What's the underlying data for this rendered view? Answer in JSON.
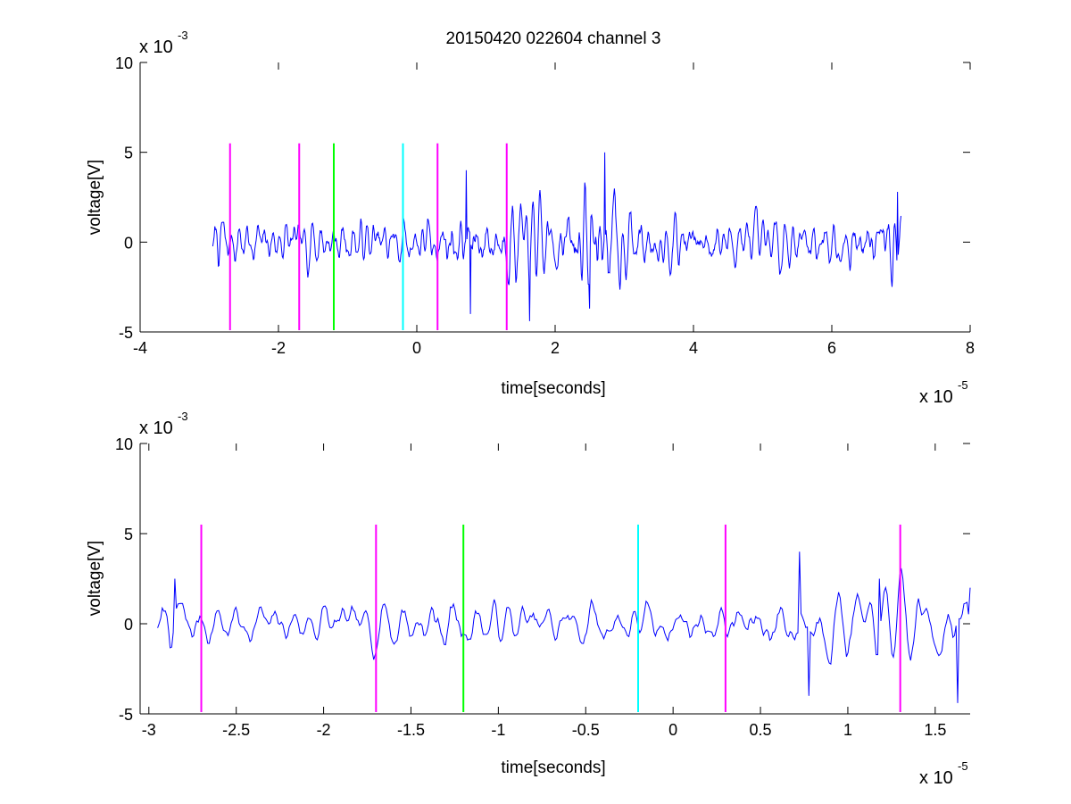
{
  "chart_data": [
    {
      "type": "line",
      "title": "20150420 022604 channel 3",
      "xlabel": "time[seconds]",
      "ylabel": "voltage[V]",
      "xlim": [
        -4e-05,
        8e-05
      ],
      "ylim": [
        -0.005,
        0.01
      ],
      "xticks": [
        -4e-05,
        -2e-05,
        0,
        2e-05,
        4e-05,
        6e-05,
        8e-05
      ],
      "xtick_labels": [
        "-4",
        "-2",
        "0",
        "2",
        "4",
        "6",
        "8"
      ],
      "yticks": [
        -0.005,
        0,
        0.005,
        0.01
      ],
      "ytick_labels": [
        "-5",
        "0",
        "5",
        "10"
      ],
      "x_exponent": {
        "base": "x 10",
        "power": "-5"
      },
      "y_exponent": {
        "base": "x 10",
        "power": "-3"
      },
      "grid": false,
      "signal": {
        "color": "#0000ff",
        "x_start": -2.95e-05,
        "x_end": 7e-05,
        "n_points": 1000,
        "seed": 7,
        "noise_amplitude": 0.0011,
        "bursts": [
          {
            "t": 7e-06,
            "width": 3.5e-06,
            "gain": 1.5
          },
          {
            "t": 1.5e-05,
            "width": 3e-06,
            "gain": 1.6
          },
          {
            "t": 2.6e-05,
            "width": 5e-06,
            "gain": 2.3
          },
          {
            "t": 6.9e-05,
            "width": 3e-06,
            "gain": 1.6
          },
          {
            "t": -2.85e-05,
            "width": 1.5e-06,
            "gain": 1.4
          }
        ],
        "peaks": [
          {
            "t": 2.72e-05,
            "v": 0.005
          },
          {
            "t": 7.2e-06,
            "v": 0.004
          },
          {
            "t": 7.8e-06,
            "v": -0.004
          },
          {
            "t": 1.63e-05,
            "v": -0.0044
          },
          {
            "t": 2.5e-05,
            "v": -0.0037
          },
          {
            "t": 6.95e-05,
            "v": 0.0028
          }
        ]
      },
      "markers": [
        {
          "x": -2.7e-05,
          "color": "#ff00ff",
          "y0": -0.0049,
          "y1": 0.0055
        },
        {
          "x": -1.7e-05,
          "color": "#ff00ff",
          "y0": -0.0049,
          "y1": 0.0055
        },
        {
          "x": -1.2e-05,
          "color": "#00ff00",
          "y0": -0.0049,
          "y1": 0.0055
        },
        {
          "x": -2e-06,
          "color": "#00ffff",
          "y0": -0.0049,
          "y1": 0.0055
        },
        {
          "x": 3e-06,
          "color": "#ff00ff",
          "y0": -0.0049,
          "y1": 0.0055
        },
        {
          "x": 1.3e-05,
          "color": "#ff00ff",
          "y0": -0.0049,
          "y1": 0.0055
        }
      ]
    },
    {
      "type": "line",
      "title": "",
      "xlabel": "time[seconds]",
      "ylabel": "voltage[V]",
      "xlim": [
        -3.05e-05,
        1.7e-05
      ],
      "ylim": [
        -0.005,
        0.01
      ],
      "xticks": [
        -3e-05,
        -2.5e-05,
        -2e-05,
        -1.5e-05,
        -1e-05,
        -5e-06,
        0,
        5e-06,
        1e-05,
        1.5e-05
      ],
      "xtick_labels": [
        "-3",
        "-2.5",
        "-2",
        "-1.5",
        "-1",
        "-0.5",
        "0",
        "0.5",
        "1",
        "1.5"
      ],
      "yticks": [
        -0.005,
        0,
        0.005,
        0.01
      ],
      "ytick_labels": [
        "-5",
        "0",
        "5",
        "10"
      ],
      "x_exponent": {
        "base": "x 10",
        "power": "-5"
      },
      "y_exponent": {
        "base": "x 10",
        "power": "-3"
      },
      "grid": false,
      "signal": {
        "color": "#0000ff",
        "x_start": -2.95e-05,
        "x_end": 1.7e-05,
        "n_points": 520,
        "seed": 7,
        "noise_amplitude": 0.0011,
        "bursts": [
          {
            "t": 7e-06,
            "width": 3.5e-06,
            "gain": 1.5
          },
          {
            "t": 1.5e-05,
            "width": 3e-06,
            "gain": 1.6
          },
          {
            "t": -1.35e-05,
            "width": 2e-06,
            "gain": 1.4
          },
          {
            "t": -2.85e-05,
            "width": 1.5e-06,
            "gain": 1.4
          }
        ],
        "peaks": [
          {
            "t": 7.2e-06,
            "v": 0.004
          },
          {
            "t": 7.8e-06,
            "v": -0.004
          },
          {
            "t": 1.63e-05,
            "v": -0.0044
          },
          {
            "t": 1.18e-05,
            "v": 0.0025
          },
          {
            "t": -2.85e-05,
            "v": 0.0025
          },
          {
            "t": 1.7e-05,
            "v": 0.002
          }
        ]
      },
      "markers": [
        {
          "x": -2.7e-05,
          "color": "#ff00ff",
          "y0": -0.0049,
          "y1": 0.0055
        },
        {
          "x": -1.7e-05,
          "color": "#ff00ff",
          "y0": -0.0049,
          "y1": 0.0055
        },
        {
          "x": -1.2e-05,
          "color": "#00ff00",
          "y0": -0.0049,
          "y1": 0.0055
        },
        {
          "x": -2e-06,
          "color": "#00ffff",
          "y0": -0.0049,
          "y1": 0.0055
        },
        {
          "x": 3e-06,
          "color": "#ff00ff",
          "y0": -0.0049,
          "y1": 0.0055
        },
        {
          "x": 1.3e-05,
          "color": "#ff00ff",
          "y0": -0.0049,
          "y1": 0.0055
        }
      ]
    }
  ]
}
